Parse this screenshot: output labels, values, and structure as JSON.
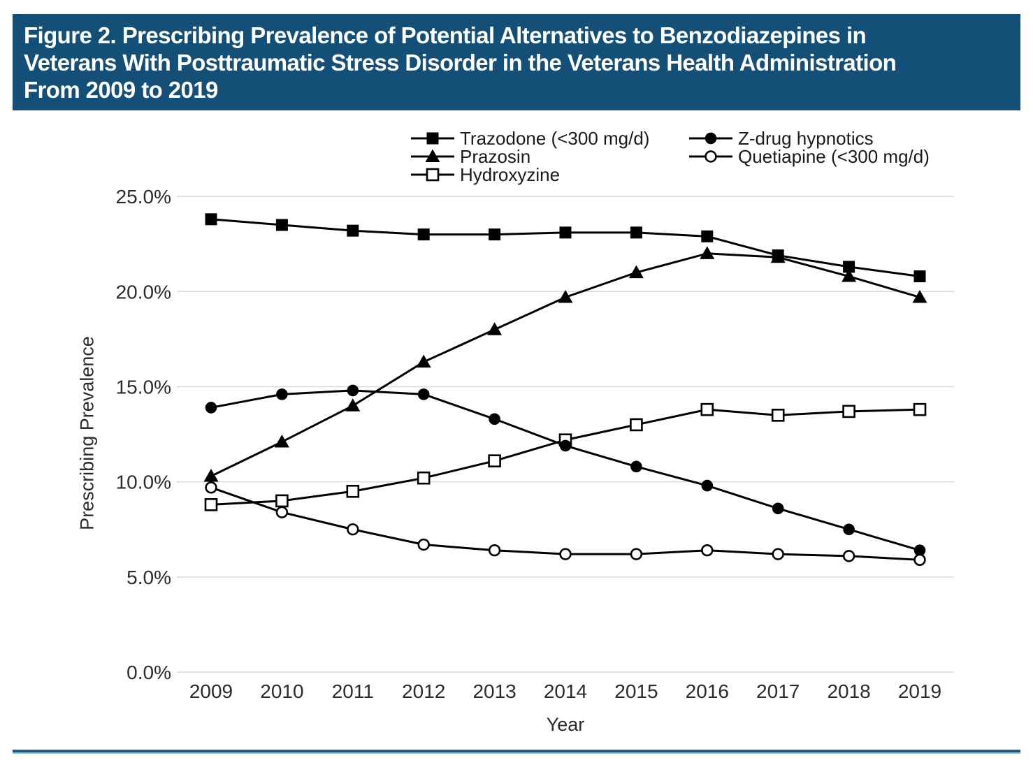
{
  "figure": {
    "title": "Figure 2. Prescribing Prevalence of Potential Alternatives to Benzodiazepines in Veterans With Posttraumatic Stress Disorder in the Veterans Health Administration From 2009 to 2019",
    "title_lines": [
      "Figure 2. Prescribing Prevalence of Potential Alternatives to Benzodiazepines in",
      "Veterans With Posttraumatic Stress Disorder in the Veterans Health Administration",
      "From 2009 to 2019"
    ]
  },
  "chart_data": {
    "type": "line",
    "x": [
      2009,
      2010,
      2011,
      2012,
      2013,
      2014,
      2015,
      2016,
      2017,
      2018,
      2019
    ],
    "xlabel": "Year",
    "ylabel": "Prescribing Prevalence",
    "ylim": [
      0,
      25
    ],
    "units": "%",
    "grid": "horizontal",
    "legend_position": "top",
    "y_ticks": [
      {
        "value": 0,
        "label": "0.0%"
      },
      {
        "value": 5,
        "label": "5.0%"
      },
      {
        "value": 10,
        "label": "10.0%"
      },
      {
        "value": 15,
        "label": "15.0%"
      },
      {
        "value": 20,
        "label": "20.0%"
      },
      {
        "value": 25,
        "label": "25.0%"
      }
    ],
    "series": [
      {
        "name": "Trazodone (<300 mg/d)",
        "marker": "filled-square",
        "legend_column": 1,
        "values": [
          23.8,
          23.5,
          23.2,
          23.0,
          23.0,
          23.1,
          23.1,
          22.9,
          21.9,
          21.3,
          20.8
        ]
      },
      {
        "name": "Prazosin",
        "marker": "filled-triangle",
        "legend_column": 1,
        "values": [
          10.3,
          12.1,
          14.0,
          16.3,
          18.0,
          19.7,
          21.0,
          22.0,
          21.8,
          20.8,
          19.7
        ]
      },
      {
        "name": "Hydroxyzine",
        "marker": "open-square",
        "legend_column": 1,
        "values": [
          8.8,
          9.0,
          9.5,
          10.2,
          11.1,
          12.2,
          13.0,
          13.8,
          13.5,
          13.7,
          13.8
        ]
      },
      {
        "name": "Z-drug hypnotics",
        "marker": "filled-circle",
        "legend_column": 2,
        "values": [
          13.9,
          14.6,
          14.8,
          14.6,
          13.3,
          11.9,
          10.8,
          9.8,
          8.6,
          7.5,
          6.4
        ]
      },
      {
        "name": "Quetiapine (<300 mg/d)",
        "marker": "open-circle",
        "legend_column": 2,
        "values": [
          9.7,
          8.4,
          7.5,
          6.7,
          6.4,
          6.2,
          6.2,
          6.4,
          6.2,
          6.1,
          5.9
        ]
      }
    ],
    "colors": {
      "series_line": "#000000",
      "grid_line": "#D9D9D9",
      "banner_background": "#134F76",
      "banner_text": "#FFFFFF",
      "axis_text": "#2B2B2B",
      "bottom_rule_dark": "#1B5E85",
      "bottom_rule_light": "#A5C6D8"
    }
  }
}
